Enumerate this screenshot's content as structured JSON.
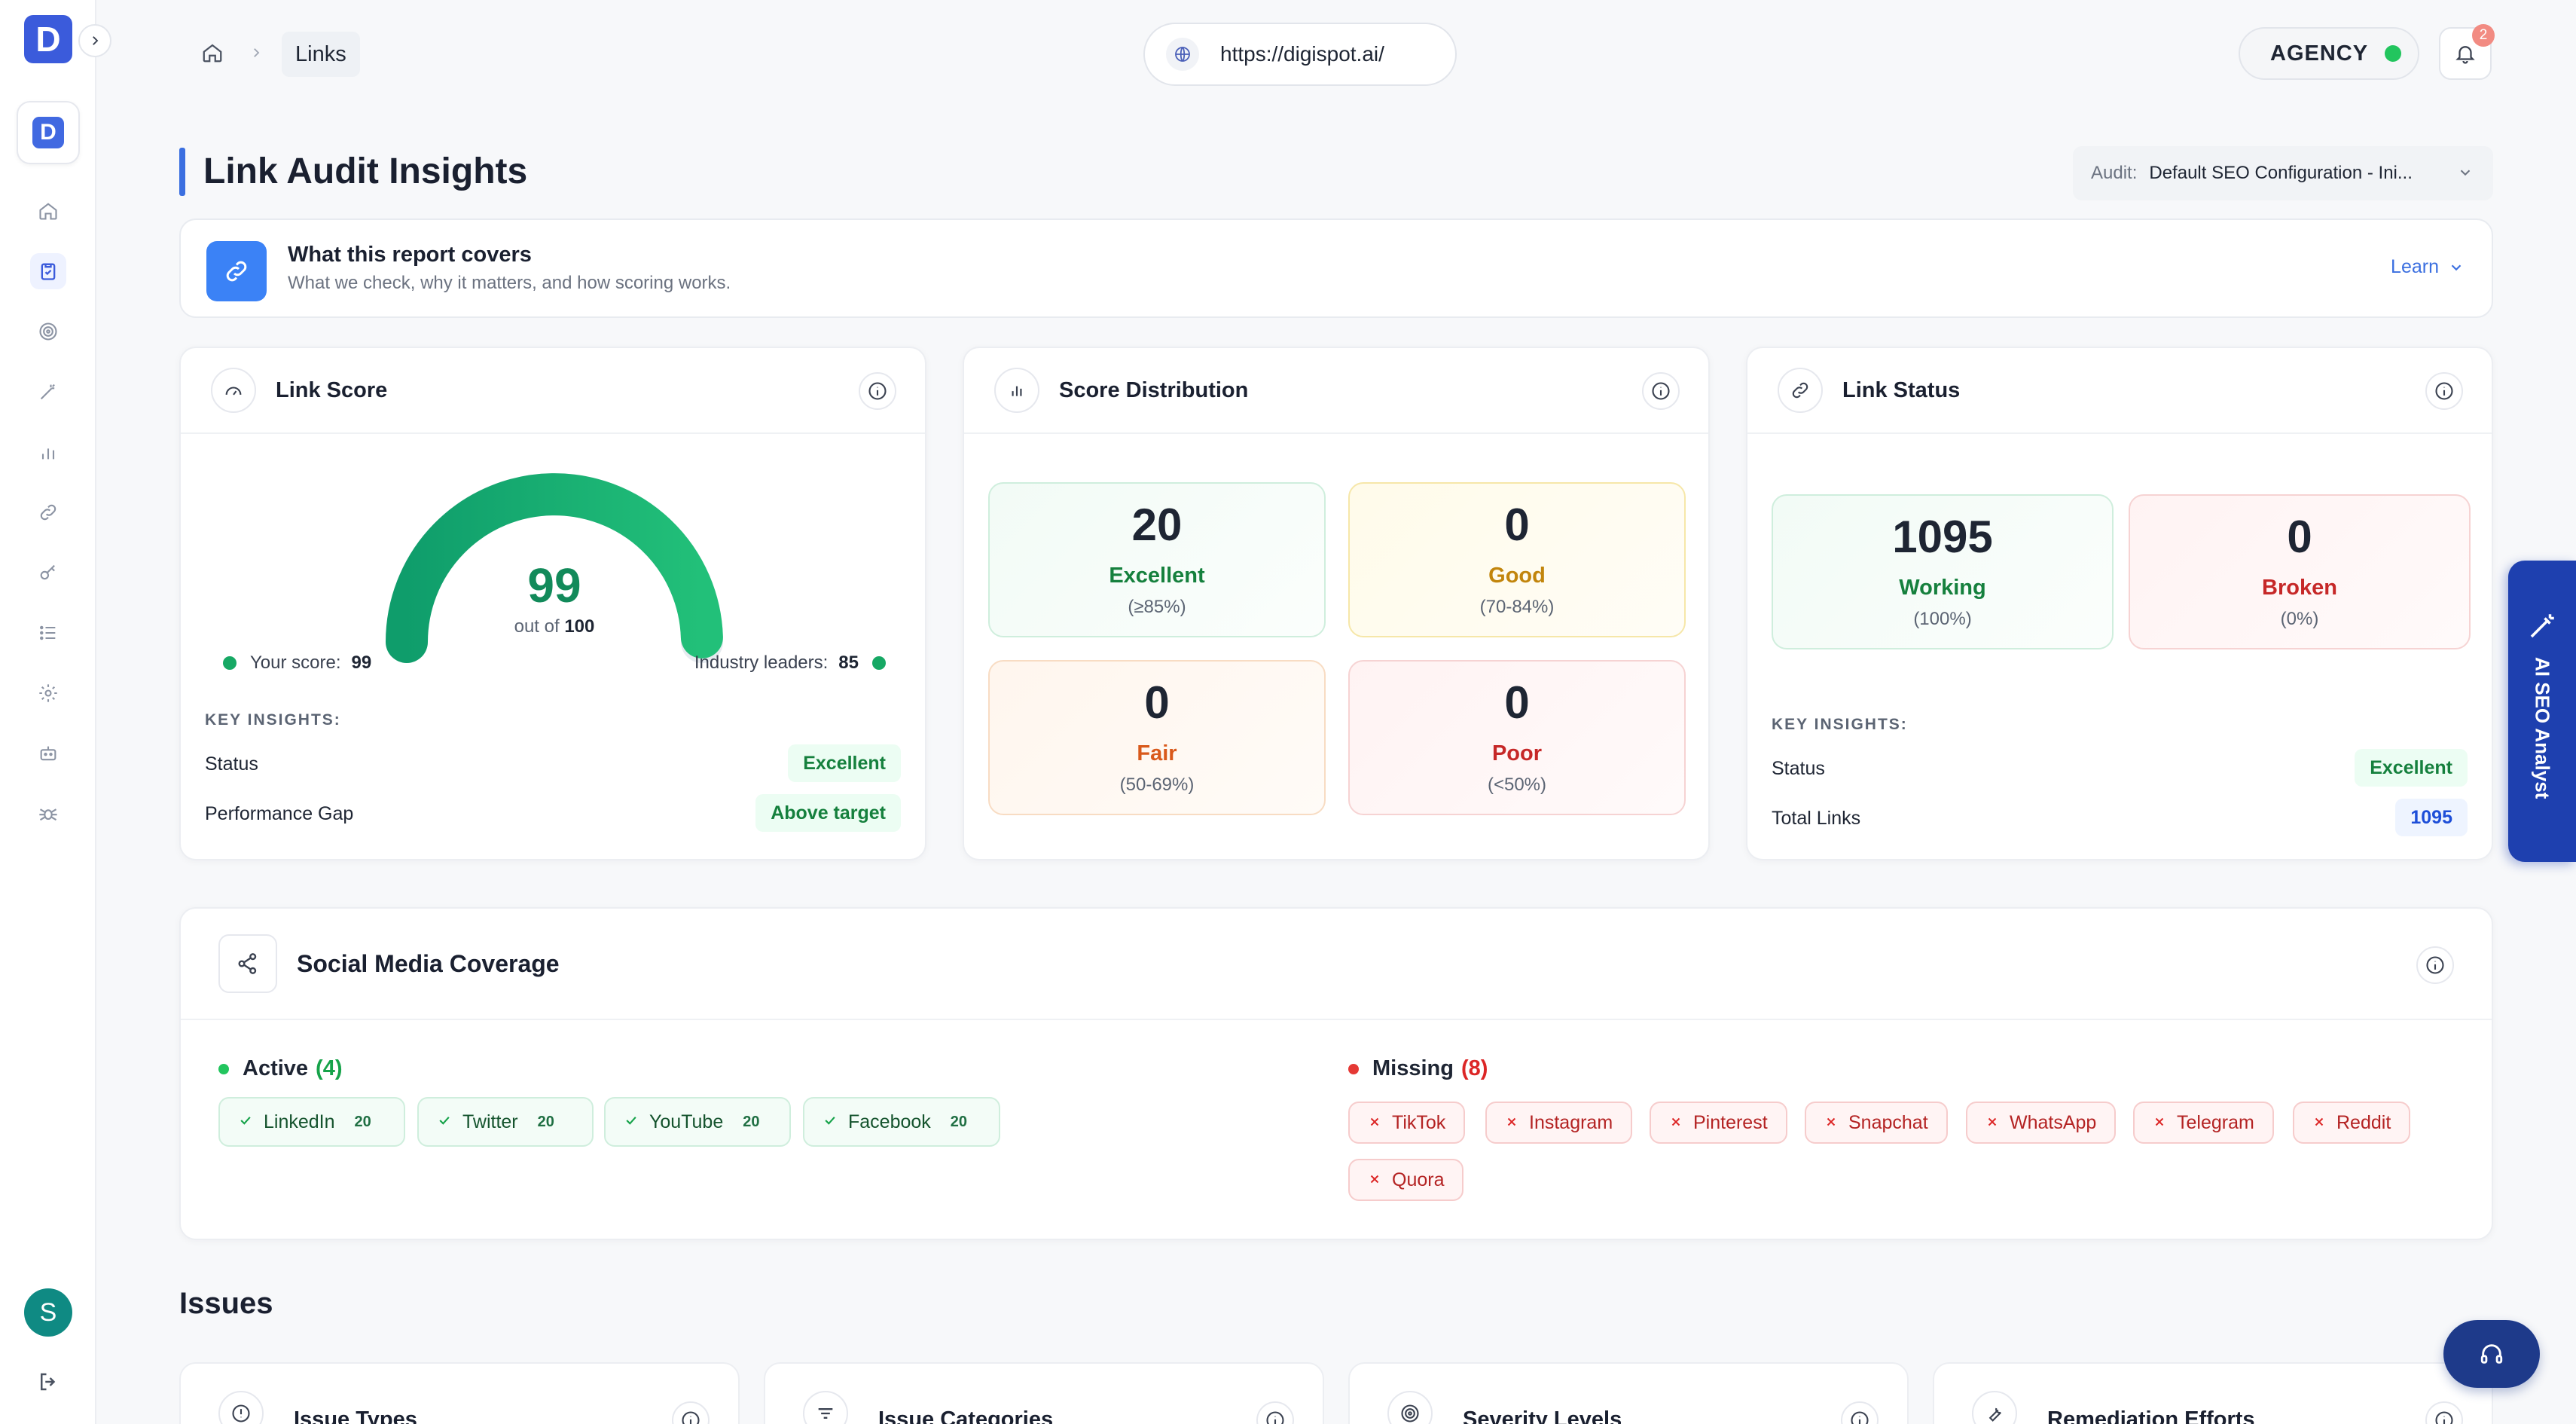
{
  "app": {
    "brand_letter": "D",
    "workspace_letter": "D",
    "user_initial": "S"
  },
  "header": {
    "breadcrumb_current": "Links",
    "url": "https://digispot.ai/",
    "plan": "AGENCY",
    "plan_status_color": "#22c55e",
    "notifications_count": "2"
  },
  "page": {
    "title": "Link Audit Insights",
    "audit_label": "Audit:",
    "audit_value": "Default SEO Configuration - Ini..."
  },
  "banner": {
    "title": "What this report covers",
    "subtitle": "What we check, why it matters, and how scoring works.",
    "learn_label": "Learn"
  },
  "link_score": {
    "title": "Link Score",
    "score": "99",
    "score_fraction": 0.99,
    "out_of_prefix": "out of",
    "out_of_value": "100",
    "your_score_label": "Your score:",
    "your_score": "99",
    "industry_label": "Industry leaders:",
    "industry_score": "85",
    "key_insights_label": "KEY INSIGHTS:",
    "status_label": "Status",
    "status_value": "Excellent",
    "gap_label": "Performance Gap",
    "gap_value": "Above target"
  },
  "distribution": {
    "title": "Score Distribution",
    "items": [
      {
        "count": "20",
        "name": "Excellent",
        "range": "(≥85%)"
      },
      {
        "count": "0",
        "name": "Good",
        "range": "(70-84%)"
      },
      {
        "count": "0",
        "name": "Fair",
        "range": "(50-69%)"
      },
      {
        "count": "0",
        "name": "Poor",
        "range": "(<50%)"
      }
    ]
  },
  "link_status": {
    "title": "Link Status",
    "items": [
      {
        "count": "1095",
        "name": "Working",
        "range": "(100%)"
      },
      {
        "count": "0",
        "name": "Broken",
        "range": "(0%)"
      }
    ],
    "key_insights_label": "KEY INSIGHTS:",
    "status_label": "Status",
    "status_value": "Excellent",
    "total_label": "Total Links",
    "total_value": "1095"
  },
  "social": {
    "title": "Social Media Coverage",
    "active_label": "Active",
    "active_count": "(4)",
    "active": [
      {
        "name": "LinkedIn",
        "count": "20"
      },
      {
        "name": "Twitter",
        "count": "20"
      },
      {
        "name": "YouTube",
        "count": "20"
      },
      {
        "name": "Facebook",
        "count": "20"
      }
    ],
    "missing_label": "Missing",
    "missing_count": "(8)",
    "missing": [
      "TikTok",
      "Instagram",
      "Pinterest",
      "Snapchat",
      "WhatsApp",
      "Telegram",
      "Reddit",
      "Quora"
    ]
  },
  "issues": {
    "title": "Issues",
    "cards": [
      "Issue Types",
      "Issue Categories",
      "Severity Levels",
      "Remediation Efforts"
    ]
  },
  "side_tab": {
    "label": "AI SEO Analyst"
  },
  "colors": {
    "accent": "#3b6fe0",
    "success": "#15803d",
    "danger": "#c62828",
    "gauge": "#16a864"
  }
}
